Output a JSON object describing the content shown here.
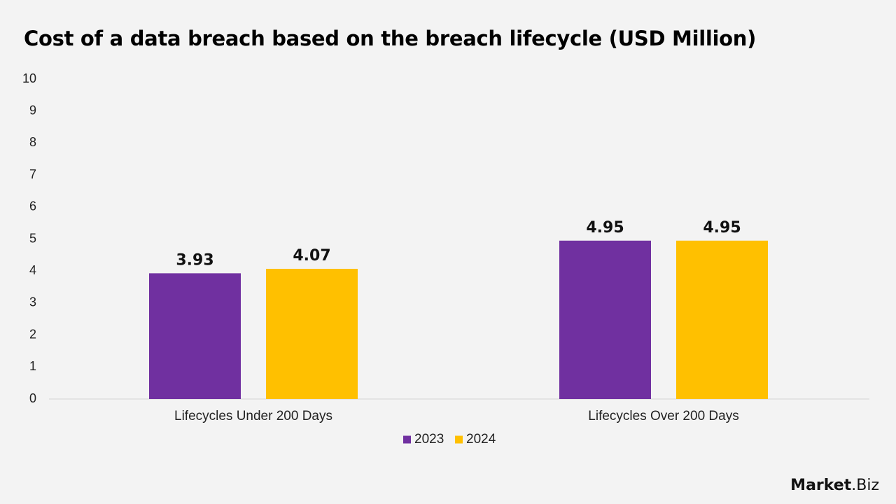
{
  "chart_data": {
    "type": "bar",
    "title": "Cost of a data breach based on the breach lifecycle (USD Million)",
    "xlabel": "",
    "ylabel": "",
    "ylim": [
      0,
      10
    ],
    "yticks": [
      0,
      1,
      2,
      3,
      4,
      5,
      6,
      7,
      8,
      9,
      10
    ],
    "categories": [
      "Lifecycles Under 200 Days",
      "Lifecycles Over 200 Days"
    ],
    "series": [
      {
        "name": "2023",
        "values": [
          3.93,
          4.95
        ],
        "color": "#7030a0"
      },
      {
        "name": "2024",
        "values": [
          4.07,
          4.95
        ],
        "color": "#ffc000"
      }
    ],
    "data_labels": true,
    "grid": false,
    "legend": "bottom-center"
  },
  "brand": {
    "part1": "Market",
    "part2": ".Biz"
  }
}
